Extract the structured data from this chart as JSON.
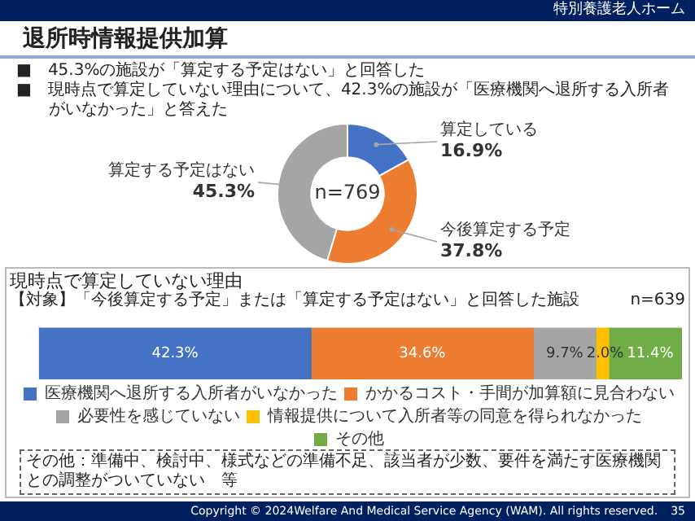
{
  "chart_data": [
    {
      "type": "donut",
      "title": "退所時情報提供加算",
      "annotations": [
        "特別養護老人ホーム",
        "■　45.3%の施設が「算定する予定はない」と回答した",
        "■　現時点で算定していない理由について、42.3%の施設が「医療機関へ退所する入所者がいなかった」と答えた",
        "n=769"
      ],
      "categories": [
        "算定している",
        "今後算定する予定",
        "算定する予定はない"
      ],
      "values": [
        16.9,
        37.8,
        45.3
      ],
      "value_labels": [
        "16.9%",
        "37.8%",
        "45.3%"
      ],
      "colors": [
        "#4472c4",
        "#ed7d31",
        "#a5a5a5"
      ],
      "legend": false
    },
    {
      "type": "bar",
      "orientation": "horizontal",
      "stacked": true,
      "title": "現時点で算定していない理由",
      "subtitle": "【対象】「今後算定する予定」または「算定する予定はない」と回答した施設",
      "annotations": [
        "n=639",
        "その他：準備中、検討中、様式などの準備不足、該当者が少数、要件を満たす医療機関との調整がついていない　等",
        "Copyright © 2024Welfare And Medical Service Agency (WAM). All rights reserved.",
        "35"
      ],
      "categories": [
        null
      ],
      "series": [
        {
          "name": "医療機関へ退所する入所者がいなかった",
          "color": "#4472c4",
          "values": [
            42.3
          ],
          "value_labels": [
            "42.3%"
          ]
        },
        {
          "name": "かかるコスト・手間が加算額に見合わない",
          "color": "#ed7d31",
          "values": [
            34.6
          ],
          "value_labels": [
            "34.6%"
          ]
        },
        {
          "name": "必要性を感じていない",
          "color": "#a5a5a5",
          "values": [
            9.7
          ],
          "value_labels": [
            "9.7%"
          ]
        },
        {
          "name": "情報提供について入所者等の同意を得られなかった",
          "color": "#ffc000",
          "values": [
            2.0
          ],
          "value_labels": [
            "2.0%"
          ]
        },
        {
          "name": "その他",
          "color": "#70ad47",
          "values": [
            11.4
          ],
          "value_labels": [
            "11.4%"
          ]
        }
      ],
      "xlim": [
        0,
        100
      ],
      "legend": "bottom"
    }
  ]
}
